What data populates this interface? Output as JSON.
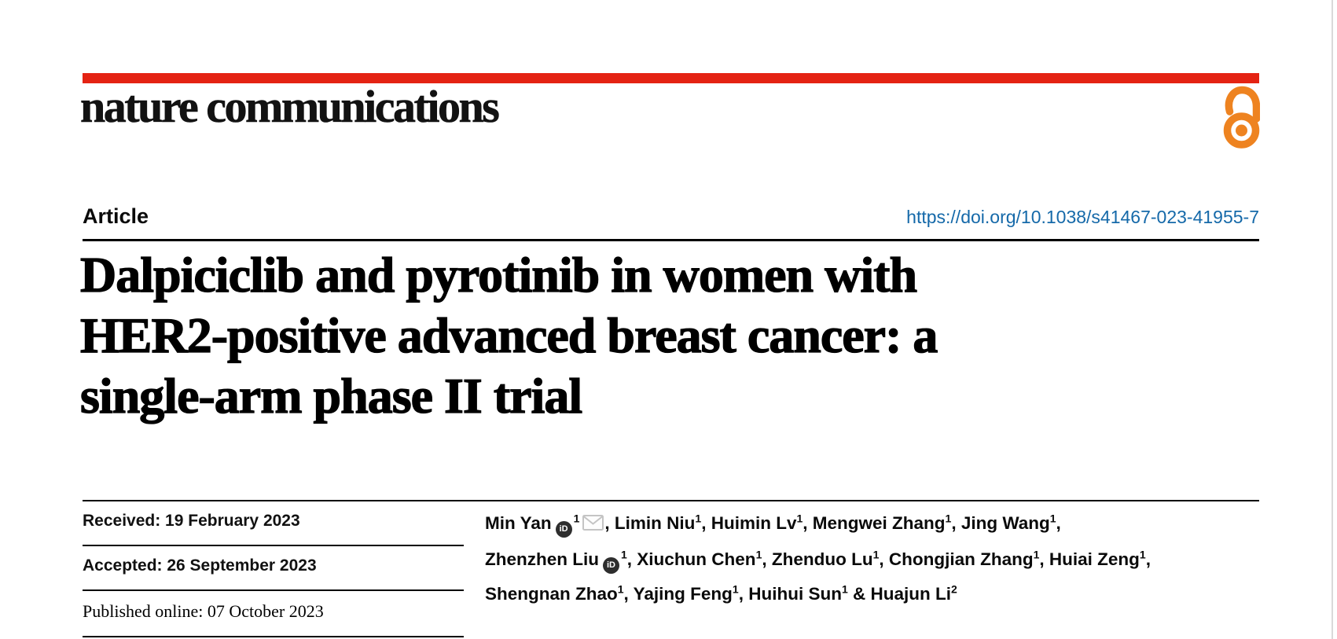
{
  "journal": {
    "name": "nature communications",
    "open_access_icon": "open-lock",
    "colors": {
      "accent_red": "#e42313",
      "open_access_orange": "#ee8320",
      "doi_blue": "#1569a9"
    }
  },
  "article": {
    "type_label": "Article",
    "doi": "https://doi.org/10.1038/s41467-023-41955-7",
    "title_lines": [
      "Dalpiciclib and pyrotinib in women with",
      "HER2-positive advanced breast cancer: a",
      "single-arm phase II trial"
    ]
  },
  "dates": {
    "rows": [
      {
        "text": "Received: 19 February 2023"
      },
      {
        "text": "Accepted: 26 September 2023"
      },
      {
        "text": "Published online: 07 October 2023"
      }
    ]
  },
  "authors": {
    "lines": [
      [
        {
          "t": "Min Yan"
        },
        {
          "icon": "orcid"
        },
        {
          "sup": "1"
        },
        {
          "icon": "mail"
        },
        {
          "t": ", Limin Niu"
        },
        {
          "sup": "1"
        },
        {
          "t": ", Huimin Lv"
        },
        {
          "sup": "1"
        },
        {
          "t": ", Mengwei Zhang"
        },
        {
          "sup": "1"
        },
        {
          "t": ", Jing Wang"
        },
        {
          "sup": "1"
        },
        {
          "t": ","
        }
      ],
      [
        {
          "t": "Zhenzhen Liu"
        },
        {
          "icon": "orcid"
        },
        {
          "sup": "1"
        },
        {
          "t": ", Xiuchun Chen"
        },
        {
          "sup": "1"
        },
        {
          "t": ", Zhenduo Lu"
        },
        {
          "sup": "1"
        },
        {
          "t": ", Chongjian Zhang"
        },
        {
          "sup": "1"
        },
        {
          "t": ", Huiai Zeng"
        },
        {
          "sup": "1"
        },
        {
          "t": ","
        }
      ],
      [
        {
          "t": "Shengnan Zhao"
        },
        {
          "sup": "1"
        },
        {
          "t": ", Yajing Feng"
        },
        {
          "sup": "1"
        },
        {
          "t": ", Huihui Sun"
        },
        {
          "sup": "1"
        },
        {
          "t": " & Huajun Li"
        },
        {
          "sup": "2"
        }
      ]
    ],
    "orcid_icon_text": "iD"
  }
}
